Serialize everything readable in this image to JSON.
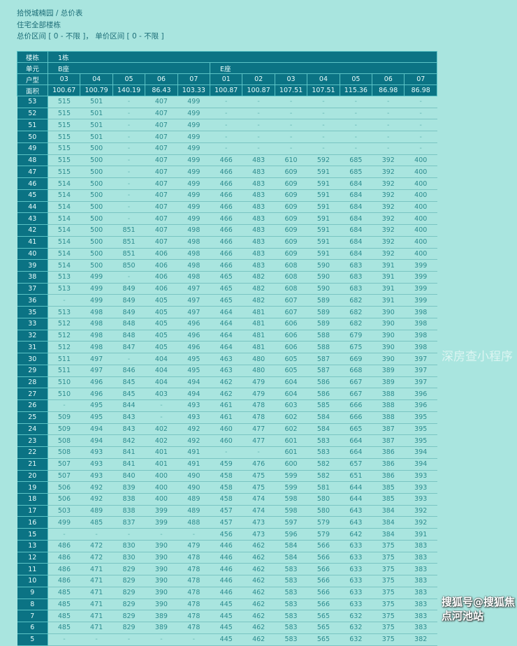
{
  "header": {
    "breadcrumb": "拾悦城楠园 / 总价表",
    "scope": "住宅全部楼栋",
    "filter": "总价区间 [ 0 - 不限 ]，  单价区间 [ 0 - 不限 ]"
  },
  "table": {
    "building_label": "楼栋",
    "building": "1栋",
    "unit_label": "单元",
    "units": [
      {
        "name": "B座",
        "span": 5
      },
      {
        "name": "E座",
        "span": 7
      }
    ],
    "type_label": "户型",
    "types": [
      "03",
      "04",
      "05",
      "06",
      "07",
      "01",
      "02",
      "03",
      "04",
      "05",
      "06",
      "07"
    ],
    "area_label": "面积",
    "areas": [
      "100.67",
      "100.79",
      "140.19",
      "86.43",
      "103.33",
      "100.87",
      "100.87",
      "107.51",
      "107.51",
      "115.36",
      "86.98",
      "86.98"
    ],
    "rows": [
      {
        "floor": "53",
        "values": [
          "515",
          "501",
          "-",
          "407",
          "499",
          "-",
          "-",
          "-",
          "-",
          "-",
          "-",
          "-"
        ]
      },
      {
        "floor": "52",
        "values": [
          "515",
          "501",
          "-",
          "407",
          "499",
          "-",
          "-",
          "-",
          "-",
          "-",
          "-",
          "-"
        ]
      },
      {
        "floor": "51",
        "values": [
          "515",
          "501",
          "-",
          "407",
          "499",
          "-",
          "-",
          "-",
          "-",
          "-",
          "-",
          "-"
        ]
      },
      {
        "floor": "50",
        "values": [
          "515",
          "501",
          "-",
          "407",
          "499",
          "-",
          "-",
          "-",
          "-",
          "-",
          "-",
          "-"
        ]
      },
      {
        "floor": "49",
        "values": [
          "515",
          "500",
          "-",
          "407",
          "499",
          "-",
          "-",
          "-",
          "-",
          "-",
          "-",
          "-"
        ]
      },
      {
        "floor": "48",
        "values": [
          "515",
          "500",
          "-",
          "407",
          "499",
          "466",
          "483",
          "610",
          "592",
          "685",
          "392",
          "400"
        ]
      },
      {
        "floor": "47",
        "values": [
          "515",
          "500",
          "-",
          "407",
          "499",
          "466",
          "483",
          "609",
          "591",
          "685",
          "392",
          "400"
        ]
      },
      {
        "floor": "46",
        "values": [
          "514",
          "500",
          "-",
          "407",
          "499",
          "466",
          "483",
          "609",
          "591",
          "684",
          "392",
          "400"
        ]
      },
      {
        "floor": "45",
        "values": [
          "514",
          "500",
          "-",
          "407",
          "499",
          "466",
          "483",
          "609",
          "591",
          "684",
          "392",
          "400"
        ]
      },
      {
        "floor": "44",
        "values": [
          "514",
          "500",
          "-",
          "407",
          "499",
          "466",
          "483",
          "609",
          "591",
          "684",
          "392",
          "400"
        ]
      },
      {
        "floor": "43",
        "values": [
          "514",
          "500",
          "-",
          "407",
          "499",
          "466",
          "483",
          "609",
          "591",
          "684",
          "392",
          "400"
        ]
      },
      {
        "floor": "42",
        "values": [
          "514",
          "500",
          "851",
          "407",
          "498",
          "466",
          "483",
          "609",
          "591",
          "684",
          "392",
          "400"
        ]
      },
      {
        "floor": "41",
        "values": [
          "514",
          "500",
          "851",
          "407",
          "498",
          "466",
          "483",
          "609",
          "591",
          "684",
          "392",
          "400"
        ]
      },
      {
        "floor": "40",
        "values": [
          "514",
          "500",
          "851",
          "406",
          "498",
          "466",
          "483",
          "609",
          "591",
          "684",
          "392",
          "400"
        ]
      },
      {
        "floor": "39",
        "values": [
          "514",
          "500",
          "850",
          "406",
          "498",
          "466",
          "483",
          "608",
          "590",
          "683",
          "391",
          "399"
        ]
      },
      {
        "floor": "38",
        "values": [
          "513",
          "499",
          "-",
          "406",
          "498",
          "465",
          "482",
          "608",
          "590",
          "683",
          "391",
          "399"
        ]
      },
      {
        "floor": "37",
        "values": [
          "513",
          "499",
          "849",
          "406",
          "497",
          "465",
          "482",
          "608",
          "590",
          "683",
          "391",
          "399"
        ]
      },
      {
        "floor": "36",
        "values": [
          "-",
          "499",
          "849",
          "405",
          "497",
          "465",
          "482",
          "607",
          "589",
          "682",
          "391",
          "399"
        ]
      },
      {
        "floor": "35",
        "values": [
          "513",
          "498",
          "849",
          "405",
          "497",
          "464",
          "481",
          "607",
          "589",
          "682",
          "390",
          "398"
        ]
      },
      {
        "floor": "33",
        "values": [
          "512",
          "498",
          "848",
          "405",
          "496",
          "464",
          "481",
          "606",
          "589",
          "682",
          "390",
          "398"
        ]
      },
      {
        "floor": "32",
        "values": [
          "512",
          "498",
          "848",
          "405",
          "496",
          "464",
          "481",
          "606",
          "588",
          "679",
          "390",
          "398"
        ]
      },
      {
        "floor": "31",
        "values": [
          "512",
          "498",
          "847",
          "405",
          "496",
          "464",
          "481",
          "606",
          "588",
          "675",
          "390",
          "398"
        ]
      },
      {
        "floor": "30",
        "values": [
          "511",
          "497",
          "-",
          "404",
          "495",
          "463",
          "480",
          "605",
          "587",
          "669",
          "390",
          "397"
        ]
      },
      {
        "floor": "29",
        "values": [
          "511",
          "497",
          "846",
          "404",
          "495",
          "463",
          "480",
          "605",
          "587",
          "668",
          "389",
          "397"
        ]
      },
      {
        "floor": "28",
        "values": [
          "510",
          "496",
          "845",
          "404",
          "494",
          "462",
          "479",
          "604",
          "586",
          "667",
          "389",
          "397"
        ]
      },
      {
        "floor": "27",
        "values": [
          "510",
          "496",
          "845",
          "403",
          "494",
          "462",
          "479",
          "604",
          "586",
          "667",
          "388",
          "396"
        ]
      },
      {
        "floor": "26",
        "values": [
          "-",
          "495",
          "844",
          "-",
          "493",
          "461",
          "478",
          "603",
          "585",
          "666",
          "388",
          "396"
        ]
      },
      {
        "floor": "25",
        "values": [
          "509",
          "495",
          "843",
          "-",
          "493",
          "461",
          "478",
          "602",
          "584",
          "666",
          "388",
          "395"
        ]
      },
      {
        "floor": "24",
        "values": [
          "509",
          "494",
          "843",
          "402",
          "492",
          "460",
          "477",
          "602",
          "584",
          "665",
          "387",
          "395"
        ]
      },
      {
        "floor": "23",
        "values": [
          "508",
          "494",
          "842",
          "402",
          "492",
          "460",
          "477",
          "601",
          "583",
          "664",
          "387",
          "395"
        ]
      },
      {
        "floor": "22",
        "values": [
          "508",
          "493",
          "841",
          "401",
          "491",
          "-",
          "-",
          "601",
          "583",
          "664",
          "386",
          "394"
        ]
      },
      {
        "floor": "21",
        "values": [
          "507",
          "493",
          "841",
          "401",
          "491",
          "459",
          "476",
          "600",
          "582",
          "657",
          "386",
          "394"
        ]
      },
      {
        "floor": "20",
        "values": [
          "507",
          "493",
          "840",
          "400",
          "490",
          "458",
          "475",
          "599",
          "582",
          "651",
          "386",
          "393"
        ]
      },
      {
        "floor": "19",
        "values": [
          "506",
          "492",
          "839",
          "400",
          "490",
          "458",
          "475",
          "599",
          "581",
          "644",
          "385",
          "393"
        ]
      },
      {
        "floor": "18",
        "values": [
          "506",
          "492",
          "838",
          "400",
          "489",
          "458",
          "474",
          "598",
          "580",
          "644",
          "385",
          "393"
        ]
      },
      {
        "floor": "17",
        "values": [
          "503",
          "489",
          "838",
          "399",
          "489",
          "457",
          "474",
          "598",
          "580",
          "643",
          "384",
          "392"
        ]
      },
      {
        "floor": "16",
        "values": [
          "499",
          "485",
          "837",
          "399",
          "488",
          "457",
          "473",
          "597",
          "579",
          "643",
          "384",
          "392"
        ]
      },
      {
        "floor": "15",
        "values": [
          "-",
          "-",
          "-",
          "-",
          "-",
          "456",
          "473",
          "596",
          "579",
          "642",
          "384",
          "391"
        ]
      },
      {
        "floor": "13",
        "values": [
          "486",
          "472",
          "830",
          "390",
          "479",
          "446",
          "462",
          "584",
          "566",
          "633",
          "375",
          "383"
        ]
      },
      {
        "floor": "12",
        "values": [
          "486",
          "472",
          "830",
          "390",
          "478",
          "446",
          "462",
          "584",
          "566",
          "633",
          "375",
          "383"
        ]
      },
      {
        "floor": "11",
        "values": [
          "486",
          "471",
          "829",
          "390",
          "478",
          "446",
          "462",
          "583",
          "566",
          "633",
          "375",
          "383"
        ]
      },
      {
        "floor": "10",
        "values": [
          "486",
          "471",
          "829",
          "390",
          "478",
          "446",
          "462",
          "583",
          "566",
          "633",
          "375",
          "383"
        ]
      },
      {
        "floor": "9",
        "values": [
          "485",
          "471",
          "829",
          "390",
          "478",
          "446",
          "462",
          "583",
          "566",
          "633",
          "375",
          "383"
        ]
      },
      {
        "floor": "8",
        "values": [
          "485",
          "471",
          "829",
          "390",
          "478",
          "445",
          "462",
          "583",
          "566",
          "633",
          "375",
          "383"
        ]
      },
      {
        "floor": "7",
        "values": [
          "485",
          "471",
          "829",
          "389",
          "478",
          "445",
          "462",
          "583",
          "565",
          "632",
          "375",
          "383"
        ]
      },
      {
        "floor": "6",
        "values": [
          "485",
          "471",
          "829",
          "389",
          "478",
          "445",
          "462",
          "583",
          "565",
          "632",
          "375",
          "383"
        ]
      },
      {
        "floor": "5",
        "values": [
          "-",
          "-",
          "-",
          "-",
          "-",
          "445",
          "462",
          "583",
          "565",
          "632",
          "375",
          "382"
        ]
      }
    ]
  },
  "watermarks": {
    "center": "深房查小程序",
    "corner": "搜狐号@搜狐焦点河池站"
  },
  "colors": {
    "background": "#a9e5df",
    "header": "#0b7384",
    "cell_text": "#2c8b8e"
  }
}
